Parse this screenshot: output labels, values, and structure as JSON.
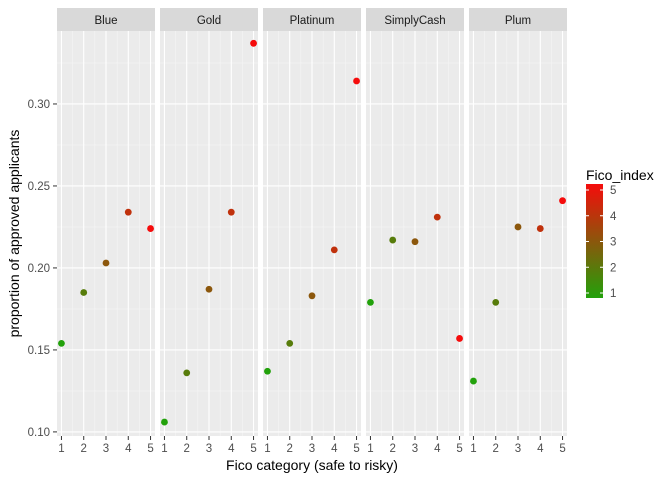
{
  "chart_data": {
    "type": "scatter",
    "xlabel": "Fico category (safe to risky)",
    "ylabel": "proportion of approved applicants",
    "x_ticks": [
      1,
      2,
      3,
      4,
      5
    ],
    "y_ticks": [
      0.1,
      0.15,
      0.2,
      0.25,
      0.3
    ],
    "y_tick_labels": [
      "0.10",
      "0.15",
      "0.20",
      "0.25",
      "0.30"
    ],
    "ylim": [
      0.0975,
      0.3445
    ],
    "xlim": [
      0.8,
      5.2
    ],
    "grid": true,
    "facets": [
      {
        "name": "Blue",
        "points": [
          [
            1,
            0.154
          ],
          [
            2,
            0.185
          ],
          [
            3,
            0.203
          ],
          [
            4,
            0.234
          ],
          [
            5,
            0.224
          ]
        ]
      },
      {
        "name": "Gold",
        "points": [
          [
            1,
            0.106
          ],
          [
            2,
            0.136
          ],
          [
            3,
            0.187
          ],
          [
            4,
            0.234
          ],
          [
            5,
            0.337
          ]
        ]
      },
      {
        "name": "Platinum",
        "points": [
          [
            1,
            0.137
          ],
          [
            2,
            0.154
          ],
          [
            3,
            0.183
          ],
          [
            4,
            0.211
          ],
          [
            5,
            0.314
          ]
        ]
      },
      {
        "name": "SimplyCash",
        "points": [
          [
            1,
            0.179
          ],
          [
            2,
            0.217
          ],
          [
            3,
            0.216
          ],
          [
            4,
            0.231
          ],
          [
            5,
            0.157
          ]
        ]
      },
      {
        "name": "Plum",
        "points": [
          [
            1,
            0.131
          ],
          [
            2,
            0.179
          ],
          [
            3,
            0.225
          ],
          [
            4,
            0.224
          ],
          [
            5,
            0.241
          ]
        ]
      }
    ],
    "legend": {
      "title": "Fico_index",
      "position": "right",
      "ticks": [
        1,
        2,
        3,
        4,
        5
      ],
      "tick_labels": [
        "1",
        "2",
        "3",
        "4",
        "5"
      ],
      "color_low": "#22A10B",
      "color_high": "#F50C0C",
      "range": [
        1,
        5
      ]
    },
    "colors": {
      "panel_background": "#EBEBEB",
      "grid_major": "#FFFFFF",
      "strip_background": "#D9D9D9",
      "axis_text": "#4D4D4D",
      "strip_text": "#1A1A1A"
    }
  }
}
